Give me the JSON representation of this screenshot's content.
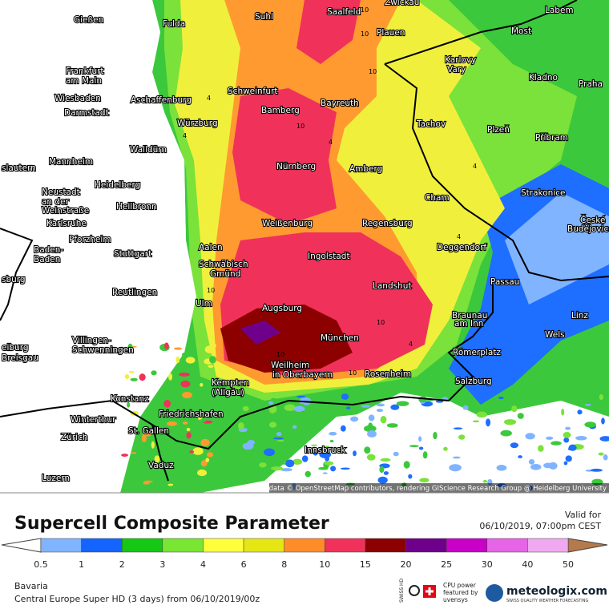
{
  "header": {
    "title": "Supercell Composite Parameter",
    "valid_label": "Valid for",
    "valid_time": "06/10/2019, 07:00pm CEST"
  },
  "legend": {
    "values": [
      0.5,
      1,
      2,
      3,
      4,
      6,
      8,
      10,
      15,
      20,
      25,
      30,
      40,
      50
    ],
    "colors": [
      "#80b4ff",
      "#1464ff",
      "#14c814",
      "#78e632",
      "#ffff3c",
      "#e6e614",
      "#ff8c28",
      "#f0325a",
      "#8c0000",
      "#6e008c",
      "#c800c8",
      "#e664e6",
      "#f0a8f0"
    ]
  },
  "map": {
    "attribution": "Map data © OpenStreetMap contributors, rendering GIScience Research Group @ Heidelberg University",
    "cities": [
      "Gießen",
      "Fulda",
      "Suhl",
      "Saalfeld",
      "Zwickau",
      "Plauen",
      "Labem",
      "Most",
      "Karlovy",
      "Vary",
      "Kladno",
      "Praha",
      "Frankfurt",
      "am Main",
      "Wiesbaden",
      "Darmstadt",
      "Aschaffenburg",
      "Schweinfurt",
      "Bamberg",
      "Bayreuth",
      "Tachov",
      "Plzeň",
      "Příbram",
      "Würzburg",
      "Walldürn",
      "Mannheim",
      "slautern",
      "Nürnberg",
      "Amberg",
      "Heidelberg",
      "Neustadt",
      "an der",
      "Weinstraße",
      "Heilbronn",
      "Cham",
      "Strakonice",
      "České",
      "Budějovice",
      "Karlsruhe",
      "Weißenburg",
      "Regensburg",
      "Pforzheim",
      "Baden-",
      "Baden",
      "Aalen",
      "Deggendorf",
      "Stuttgart",
      "Schwäbisch",
      "Gmünd",
      "Ingolstadt",
      "sburg",
      "Passau",
      "Landshut",
      "Reutlingen",
      "Ulm",
      "Augsburg",
      "Braunau",
      "am Inn",
      "Linz",
      "Wels",
      "München",
      "Villingen-",
      "Schwenningen",
      "eiburg",
      "Breisgau",
      "Römerplatz",
      "Weilheim",
      "in Oberbayern",
      "Rosenheim",
      "Kempten",
      "(Allgäu)",
      "Salzburg",
      "Konstanz",
      "Friedrichshafen",
      "Winterthur",
      "St. Gallen",
      "Zürich",
      "Innsbruck",
      "Vaduz",
      "Luzern"
    ],
    "contours": [
      10,
      10,
      10,
      4,
      4,
      10,
      4,
      10,
      10,
      4,
      10,
      10,
      4,
      4
    ]
  },
  "footer": {
    "region": "Bavaria",
    "model_run": "Central Europe Super HD (3 days) from 06/10/2019/00z",
    "badge": "SWISS HD",
    "cpu": [
      "CPU power",
      "featured by",
      "uvensys"
    ],
    "brand": "meteologix.com",
    "tagline": "SWISS QUALITY WEATHER FORECASTING"
  }
}
